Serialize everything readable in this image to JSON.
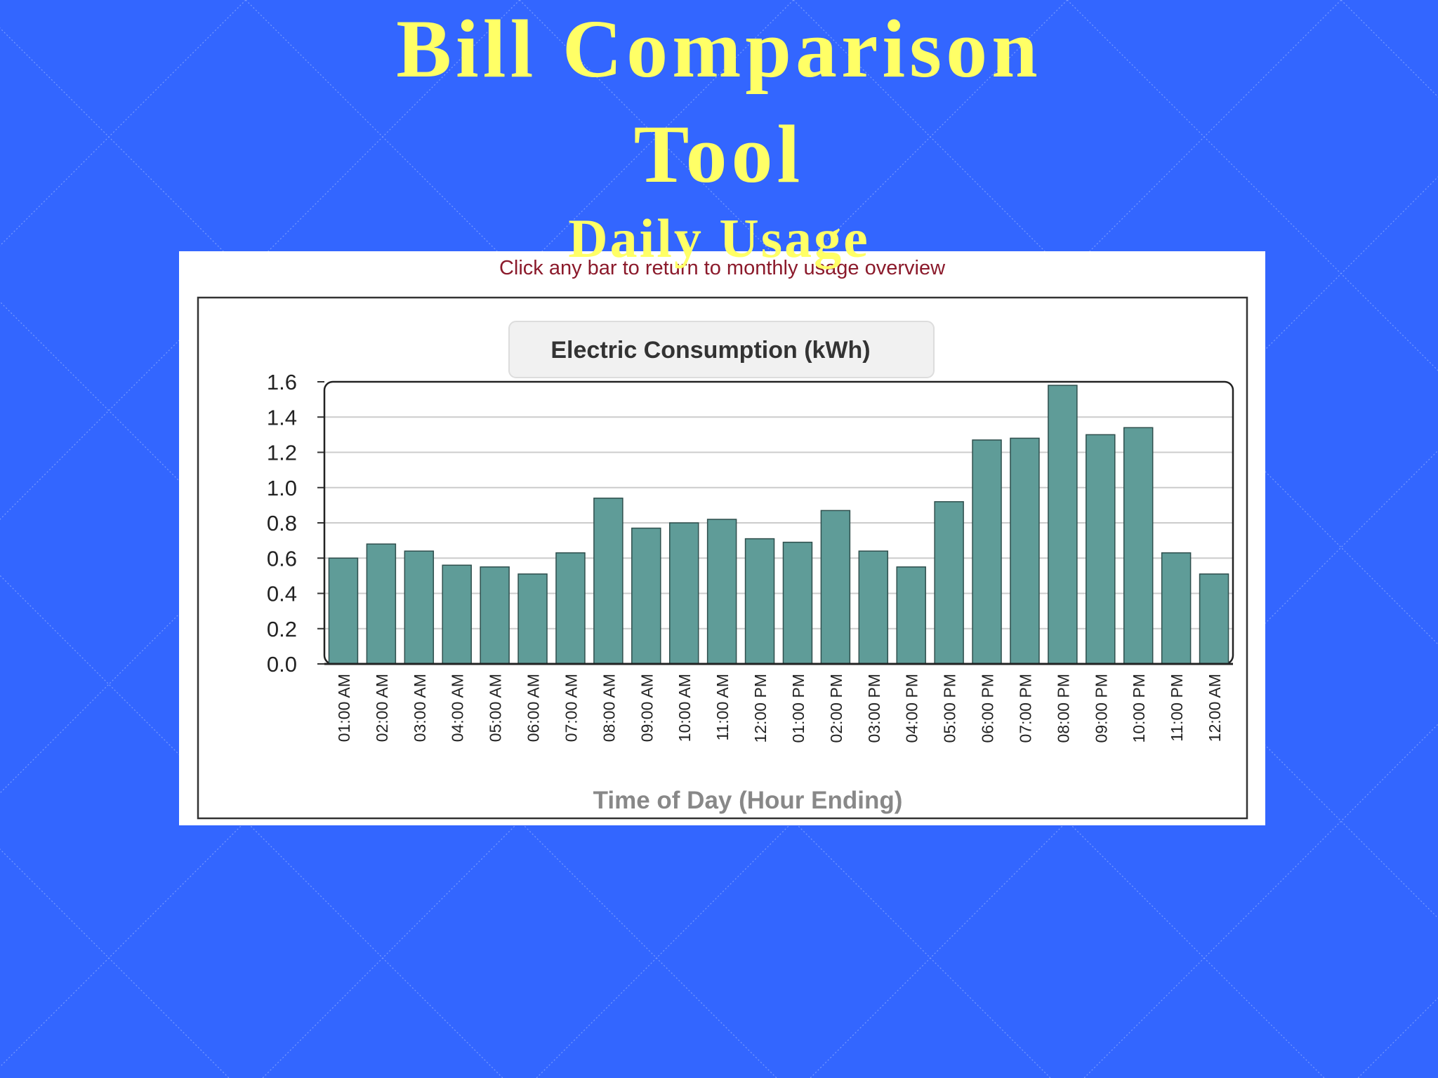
{
  "slide": {
    "title_line1": "Bill Comparison",
    "title_line2": "Tool",
    "subtitle": "Daily Usage",
    "instruction": "Click any bar to return to monthly usage overview"
  },
  "colors": {
    "background": "#3366ff",
    "title": "#ffff66",
    "bar": "#5f9c98",
    "instruction": "#8b1a2b"
  },
  "chart_data": {
    "type": "bar",
    "title": "Electric Consumption (kWh)",
    "xlabel": "Time of Day (Hour Ending)",
    "ylabel": "",
    "ylim": [
      0,
      1.6
    ],
    "yticks": [
      "0.0",
      "0.2",
      "0.4",
      "0.6",
      "0.8",
      "1.0",
      "1.2",
      "1.4",
      "1.6"
    ],
    "grid": true,
    "categories": [
      "01:00 AM",
      "02:00 AM",
      "03:00 AM",
      "04:00 AM",
      "05:00 AM",
      "06:00 AM",
      "07:00 AM",
      "08:00 AM",
      "09:00 AM",
      "10:00 AM",
      "11:00 AM",
      "12:00 PM",
      "01:00 PM",
      "02:00 PM",
      "03:00 PM",
      "04:00 PM",
      "05:00 PM",
      "06:00 PM",
      "07:00 PM",
      "08:00 PM",
      "09:00 PM",
      "10:00 PM",
      "11:00 PM",
      "12:00 AM"
    ],
    "values": [
      0.6,
      0.68,
      0.64,
      0.56,
      0.55,
      0.51,
      0.63,
      0.94,
      0.77,
      0.8,
      0.82,
      0.71,
      0.69,
      0.87,
      0.64,
      0.55,
      0.92,
      1.27,
      1.28,
      1.58,
      1.3,
      1.34,
      0.63,
      0.51
    ]
  }
}
